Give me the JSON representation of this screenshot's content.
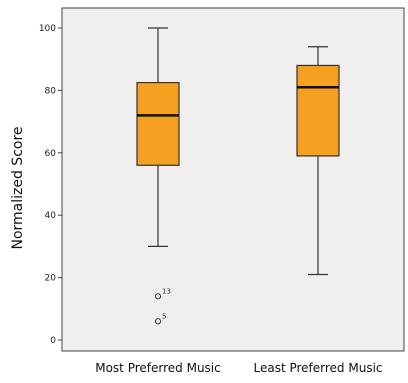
{
  "chart_data": {
    "type": "boxplot",
    "title": "",
    "xlabel": "",
    "ylabel": "Normalized Score",
    "ylim": [
      -2,
      108
    ],
    "yticks": [
      0,
      20,
      40,
      60,
      80,
      100
    ],
    "ytick_labels": [
      "0",
      "20",
      "40",
      "60",
      "80",
      "100"
    ],
    "categories": [
      "Most Preferred Music",
      "Least Preferred Music"
    ],
    "boxes": [
      {
        "category": "Most Preferred Music",
        "whisker_low": 30,
        "q1": 56,
        "median": 72,
        "q3": 82.5,
        "whisker_high": 100,
        "outliers": [
          {
            "value": 14,
            "label": "13"
          },
          {
            "value": 6,
            "label": "5"
          }
        ]
      },
      {
        "category": "Least Preferred Music",
        "whisker_low": 21,
        "q1": 59,
        "median": 81,
        "q3": 88,
        "whisker_high": 94,
        "outliers": []
      }
    ],
    "grid": false,
    "colors": {
      "plot_background": "#f0efed",
      "box_fill": "#f5a021",
      "box_stroke": "#333333",
      "median": "#111111"
    }
  }
}
